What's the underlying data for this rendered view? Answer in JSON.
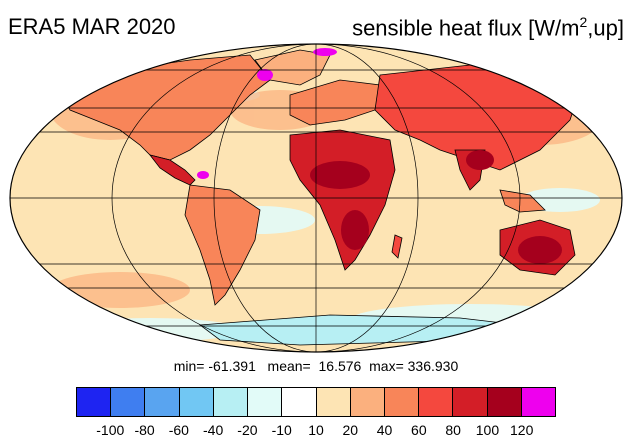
{
  "title": {
    "left": "ERA5 MAR 2020",
    "right_main": "sensible heat flux [W/m",
    "right_sup": "2",
    "right_tail": ",up]"
  },
  "stats": {
    "min_label": "min=",
    "min": "-61.391",
    "mean_label": "mean=",
    "mean": "16.576",
    "max_label": "max=",
    "max": "336.930"
  },
  "colorbar": {
    "colors": [
      "#1e24f2",
      "#3f7ef0",
      "#59a4f0",
      "#71c7f3",
      "#b7eff3",
      "#e2fbf8",
      "#ffffff",
      "#fde4b4",
      "#fbb07e",
      "#f88559",
      "#f4483e",
      "#d31e27",
      "#a5001d",
      "#ee00ee"
    ],
    "labels": [
      "-100",
      "-80",
      "-60",
      "-40",
      "-20",
      "-10",
      "10",
      "20",
      "40",
      "60",
      "80",
      "100",
      "120"
    ]
  },
  "map": {
    "projection": "Mollweide",
    "ocean_color": "#fde4b4",
    "land_color": "#f4483e"
  }
}
